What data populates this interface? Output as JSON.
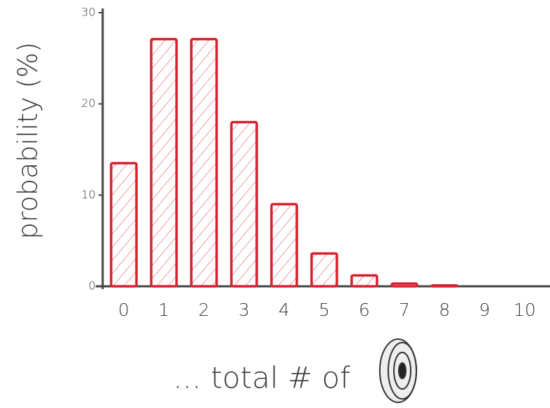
{
  "chart_data": {
    "type": "bar",
    "y_label": "probability (%)",
    "x_label": "... total # of",
    "categories": [
      "0",
      "1",
      "2",
      "3",
      "4",
      "5",
      "6",
      "7",
      "8",
      "9",
      "10"
    ],
    "values": [
      13.5,
      27.1,
      27.1,
      18.0,
      9.0,
      3.6,
      1.2,
      0.3,
      0.1,
      0.0,
      0.0
    ],
    "color": "#d8202e",
    "ylim": [
      0,
      30
    ],
    "yticks": [
      0,
      10,
      20,
      30
    ],
    "grid": false
  }
}
